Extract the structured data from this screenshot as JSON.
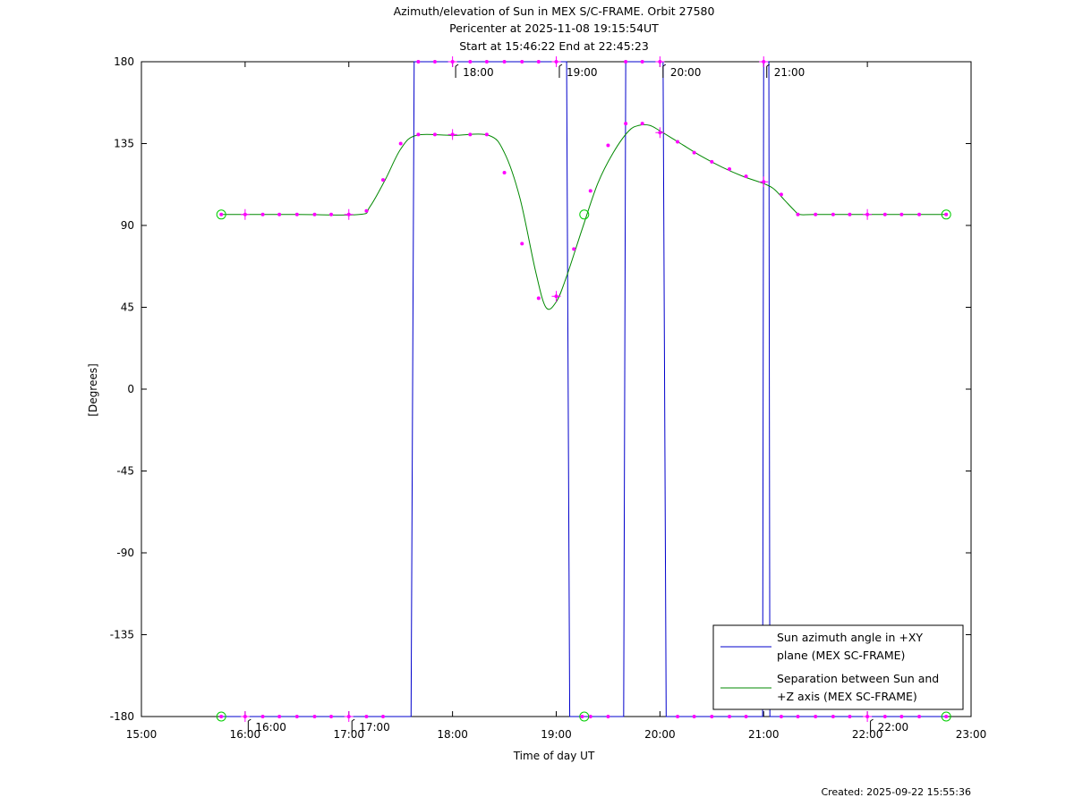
{
  "chart_data": {
    "type": "line",
    "title_lines": [
      "Azimuth/elevation of Sun in MEX S/C-FRAME.  Orbit 27580",
      "Pericenter at 2025-11-08 19:15:54UT",
      "Start at 15:46:22 End at 22:45:23"
    ],
    "xlabel": "Time of day UT",
    "ylabel": "[Degrees]",
    "xlim": [
      15.0,
      23.0
    ],
    "ylim": [
      -180,
      180
    ],
    "x_ticks": [
      15,
      16,
      17,
      18,
      19,
      20,
      21,
      22,
      23
    ],
    "x_tick_labels": [
      "15:00",
      "16:00",
      "17:00",
      "18:00",
      "19:00",
      "20:00",
      "21:00",
      "22:00",
      "23:00"
    ],
    "y_ticks": [
      180,
      135,
      90,
      45,
      0,
      -45,
      -90,
      -135,
      -180
    ],
    "y_tick_labels": [
      "180",
      "135",
      "90",
      "45",
      "0",
      "-45",
      "-90",
      "-135",
      "-180"
    ],
    "hour_markers": {
      "top": [
        {
          "x": 18.03,
          "label": "18:00"
        },
        {
          "x": 19.03,
          "label": "19:00"
        },
        {
          "x": 20.03,
          "label": "20:00"
        },
        {
          "x": 21.03,
          "label": "21:00"
        }
      ],
      "bottom": [
        {
          "x": 16.03,
          "label": "16:00"
        },
        {
          "x": 17.03,
          "label": "17:00"
        },
        {
          "x": 22.03,
          "label": "22:00"
        }
      ]
    },
    "legend": {
      "placement": "bottom-right",
      "entries": [
        {
          "lines": [
            "Sun azimuth angle in +XY",
            "plane (MEX SC-FRAME)"
          ],
          "color": "#0000cc"
        },
        {
          "lines": [
            "Separation between Sun and",
            "+Z axis (MEX SC-FRAME)"
          ],
          "color": "#008800"
        }
      ]
    },
    "series": [
      {
        "name": "Sun azimuth angle in +XY plane (MEX SC-FRAME)",
        "color": "#0000cc",
        "x": [
          15.77,
          17.6,
          17.63,
          19.1,
          19.13,
          19.65,
          19.67,
          20.03,
          20.06,
          20.99,
          21.0,
          21.05,
          21.06,
          22.76
        ],
        "y": [
          -180,
          -180,
          180,
          180,
          -180,
          -180,
          180,
          180,
          -180,
          -180,
          180,
          180,
          -180,
          -180
        ]
      },
      {
        "name": "Separation between Sun and +Z axis (MEX SC-FRAME)",
        "color": "#008800",
        "x": [
          15.77,
          16.5,
          17.1,
          17.2,
          17.35,
          17.5,
          17.65,
          18.0,
          18.35,
          18.5,
          18.65,
          18.8,
          18.9,
          19.0,
          19.1,
          19.25,
          19.4,
          19.55,
          19.7,
          19.8,
          19.9,
          20.0,
          20.2,
          20.4,
          20.6,
          20.8,
          21.0,
          21.1,
          21.2,
          21.3,
          21.35,
          21.5,
          22.0,
          22.5,
          22.76
        ],
        "y": [
          96,
          96,
          96,
          100,
          115,
          132,
          139.5,
          139.5,
          139.5,
          130,
          105,
          65,
          45,
          48,
          62,
          88,
          113,
          130,
          142,
          145,
          145,
          142,
          135,
          128,
          122,
          117,
          113,
          110,
          104,
          98,
          96,
          96,
          96,
          96,
          96
        ]
      }
    ],
    "markers": {
      "color": "#ff00ff",
      "azimuth_dots": [
        {
          "x": 15.77,
          "y": -180
        },
        {
          "x": 16.0,
          "y": -180
        },
        {
          "x": 16.17,
          "y": -180
        },
        {
          "x": 16.33,
          "y": -180
        },
        {
          "x": 16.5,
          "y": -180
        },
        {
          "x": 16.67,
          "y": -180
        },
        {
          "x": 16.83,
          "y": -180
        },
        {
          "x": 17.0,
          "y": -180
        },
        {
          "x": 17.17,
          "y": -180
        },
        {
          "x": 17.33,
          "y": -180
        },
        {
          "x": 17.67,
          "y": 180
        },
        {
          "x": 17.83,
          "y": 180
        },
        {
          "x": 18.0,
          "y": 180
        },
        {
          "x": 18.17,
          "y": 180
        },
        {
          "x": 18.33,
          "y": 180
        },
        {
          "x": 18.5,
          "y": 180
        },
        {
          "x": 18.67,
          "y": 180
        },
        {
          "x": 18.83,
          "y": 180
        },
        {
          "x": 19.0,
          "y": 180
        },
        {
          "x": 19.25,
          "y": -180
        },
        {
          "x": 19.33,
          "y": -180
        },
        {
          "x": 19.5,
          "y": -180
        },
        {
          "x": 19.67,
          "y": 180
        },
        {
          "x": 19.83,
          "y": 180
        },
        {
          "x": 20.0,
          "y": 180
        },
        {
          "x": 20.17,
          "y": -180
        },
        {
          "x": 20.33,
          "y": -180
        },
        {
          "x": 20.5,
          "y": -180
        },
        {
          "x": 20.67,
          "y": -180
        },
        {
          "x": 20.83,
          "y": -180
        },
        {
          "x": 21.0,
          "y": 180
        },
        {
          "x": 21.17,
          "y": -180
        },
        {
          "x": 21.33,
          "y": -180
        },
        {
          "x": 21.5,
          "y": -180
        },
        {
          "x": 21.67,
          "y": -180
        },
        {
          "x": 21.83,
          "y": -180
        },
        {
          "x": 22.0,
          "y": -180
        },
        {
          "x": 22.17,
          "y": -180
        },
        {
          "x": 22.33,
          "y": -180
        },
        {
          "x": 22.5,
          "y": -180
        },
        {
          "x": 22.76,
          "y": -180
        }
      ],
      "separation_dots": [
        {
          "x": 15.77,
          "y": 96
        },
        {
          "x": 16.0,
          "y": 96
        },
        {
          "x": 16.17,
          "y": 96
        },
        {
          "x": 16.33,
          "y": 96
        },
        {
          "x": 16.5,
          "y": 96
        },
        {
          "x": 16.67,
          "y": 96
        },
        {
          "x": 16.83,
          "y": 96
        },
        {
          "x": 17.0,
          "y": 96
        },
        {
          "x": 17.17,
          "y": 98
        },
        {
          "x": 17.33,
          "y": 115
        },
        {
          "x": 17.5,
          "y": 135
        },
        {
          "x": 17.67,
          "y": 140
        },
        {
          "x": 17.83,
          "y": 140
        },
        {
          "x": 18.0,
          "y": 140
        },
        {
          "x": 18.17,
          "y": 140
        },
        {
          "x": 18.33,
          "y": 140
        },
        {
          "x": 18.5,
          "y": 119
        },
        {
          "x": 18.67,
          "y": 80
        },
        {
          "x": 18.83,
          "y": 50
        },
        {
          "x": 19.0,
          "y": 51
        },
        {
          "x": 19.17,
          "y": 77
        },
        {
          "x": 19.33,
          "y": 109
        },
        {
          "x": 19.5,
          "y": 134
        },
        {
          "x": 19.67,
          "y": 146
        },
        {
          "x": 19.83,
          "y": 146
        },
        {
          "x": 20.0,
          "y": 141
        },
        {
          "x": 20.17,
          "y": 136
        },
        {
          "x": 20.33,
          "y": 130
        },
        {
          "x": 20.5,
          "y": 125
        },
        {
          "x": 20.67,
          "y": 121
        },
        {
          "x": 20.83,
          "y": 117
        },
        {
          "x": 21.0,
          "y": 114
        },
        {
          "x": 21.17,
          "y": 107
        },
        {
          "x": 21.33,
          "y": 96
        },
        {
          "x": 21.5,
          "y": 96
        },
        {
          "x": 21.67,
          "y": 96
        },
        {
          "x": 21.83,
          "y": 96
        },
        {
          "x": 22.0,
          "y": 96
        },
        {
          "x": 22.17,
          "y": 96
        },
        {
          "x": 22.33,
          "y": 96
        },
        {
          "x": 22.5,
          "y": 96
        },
        {
          "x": 22.76,
          "y": 96
        }
      ],
      "cross_marks": [
        {
          "x": 16.0,
          "y": -180
        },
        {
          "x": 17.0,
          "y": -180
        },
        {
          "x": 18.0,
          "y": 180
        },
        {
          "x": 19.0,
          "y": 180
        },
        {
          "x": 20.0,
          "y": 180
        },
        {
          "x": 21.0,
          "y": 180
        },
        {
          "x": 22.0,
          "y": -180
        },
        {
          "x": 16.0,
          "y": 96
        },
        {
          "x": 17.0,
          "y": 96
        },
        {
          "x": 18.0,
          "y": 140
        },
        {
          "x": 19.0,
          "y": 51
        },
        {
          "x": 20.0,
          "y": 141
        },
        {
          "x": 21.0,
          "y": 114
        },
        {
          "x": 22.0,
          "y": 96
        }
      ],
      "circle_color": "#00cc00",
      "circles": [
        {
          "x": 15.77,
          "y": 96
        },
        {
          "x": 15.77,
          "y": -180
        },
        {
          "x": 19.27,
          "y": 96
        },
        {
          "x": 19.27,
          "y": -180
        },
        {
          "x": 22.76,
          "y": 96
        },
        {
          "x": 22.76,
          "y": -180
        }
      ]
    }
  },
  "footer": {
    "created": "Created: 2025-09-22 15:55:36"
  }
}
